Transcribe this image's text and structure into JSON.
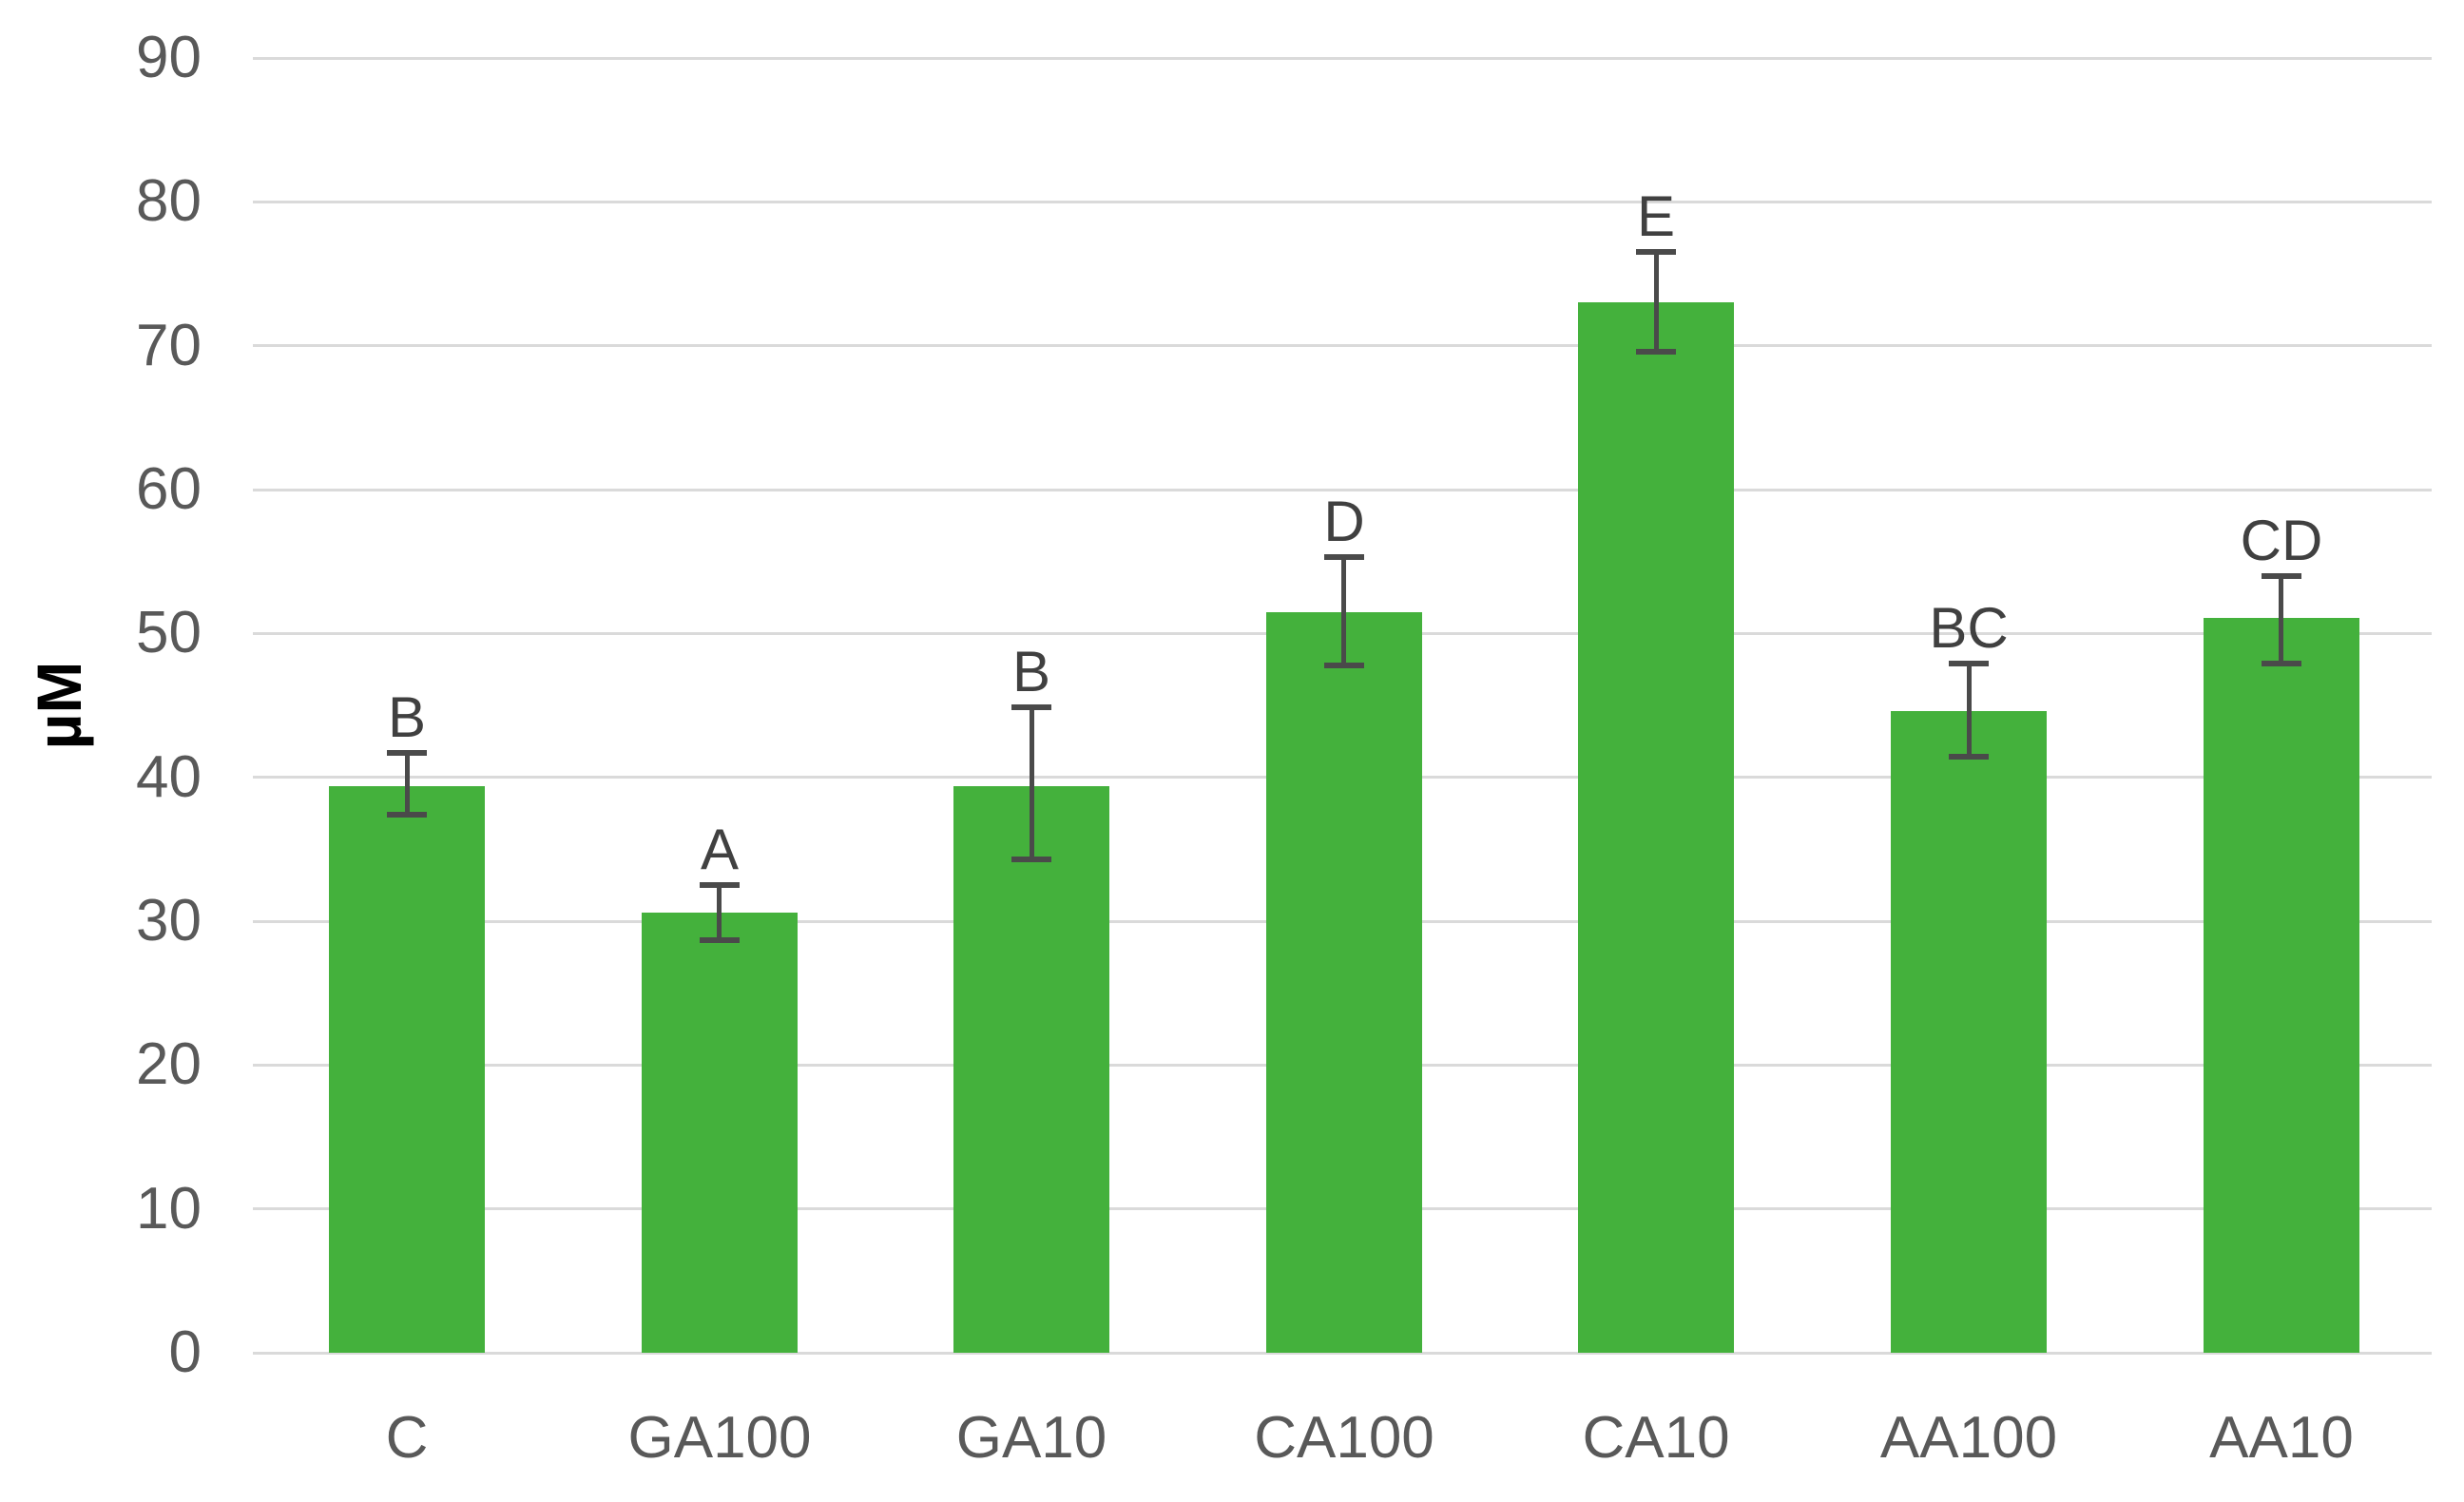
{
  "chart_data": {
    "type": "bar",
    "title": "",
    "xlabel": "",
    "ylabel": "µM",
    "ylim": [
      0,
      90
    ],
    "yticks": [
      0,
      10,
      20,
      30,
      40,
      50,
      60,
      70,
      80,
      90
    ],
    "grid": "horizontal-on",
    "legend": "none",
    "categories": [
      "C",
      "GA100",
      "GA10",
      "CA100",
      "CA10",
      "AA100",
      "AA10"
    ],
    "values": [
      39.4,
      30.6,
      39.4,
      51.5,
      73.0,
      44.6,
      51.1
    ],
    "error_plus": [
      2.3,
      1.9,
      5.5,
      3.8,
      3.5,
      3.3,
      2.9
    ],
    "error_minus": [
      2.0,
      1.9,
      5.1,
      3.7,
      3.4,
      3.2,
      3.2
    ],
    "sig_letters": [
      "B",
      "A",
      "B",
      "D",
      "E",
      "BC",
      "CD"
    ],
    "colors": {
      "bar": "#44B13C",
      "gridline": "#DADADA",
      "axis_text": "#595959",
      "error_bar": "#4A4A4A",
      "sig_letter": "#404040"
    }
  }
}
